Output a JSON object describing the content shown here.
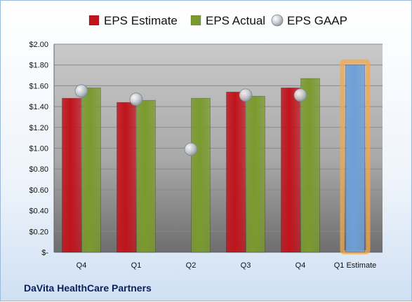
{
  "chart_data": {
    "type": "bar",
    "categories": [
      "Q4",
      "Q1",
      "Q2",
      "Q3",
      "Q4",
      "Q1 Estimate"
    ],
    "series": [
      {
        "name": "EPS Estimate",
        "kind": "bar",
        "color": "#c0141c",
        "values": [
          1.48,
          1.44,
          null,
          1.54,
          1.58,
          null
        ]
      },
      {
        "name": "EPS Actual",
        "kind": "bar",
        "color": "#7a9a2e",
        "values": [
          1.58,
          1.46,
          1.48,
          1.5,
          1.67,
          null
        ]
      },
      {
        "name": "EPS GAAP",
        "kind": "marker",
        "color": "#b8c0c8",
        "values": [
          1.55,
          1.47,
          0.99,
          1.51,
          1.51,
          null
        ]
      },
      {
        "name": "",
        "kind": "bar",
        "color": "#6f9fd8",
        "highlight": "#f5a84a",
        "values": [
          null,
          null,
          null,
          null,
          null,
          1.8
        ]
      }
    ],
    "yticks": [
      "$2.00",
      "$1.80",
      "$1.60",
      "$1.40",
      "$1.20",
      "$1.00",
      "$0.80",
      "$0.60",
      "$0.40",
      "$0.20",
      "$-"
    ],
    "ylim": [
      0,
      2.0
    ],
    "legend_position": "top"
  },
  "footer": {
    "company": "DaVita HealthCare Partners"
  }
}
